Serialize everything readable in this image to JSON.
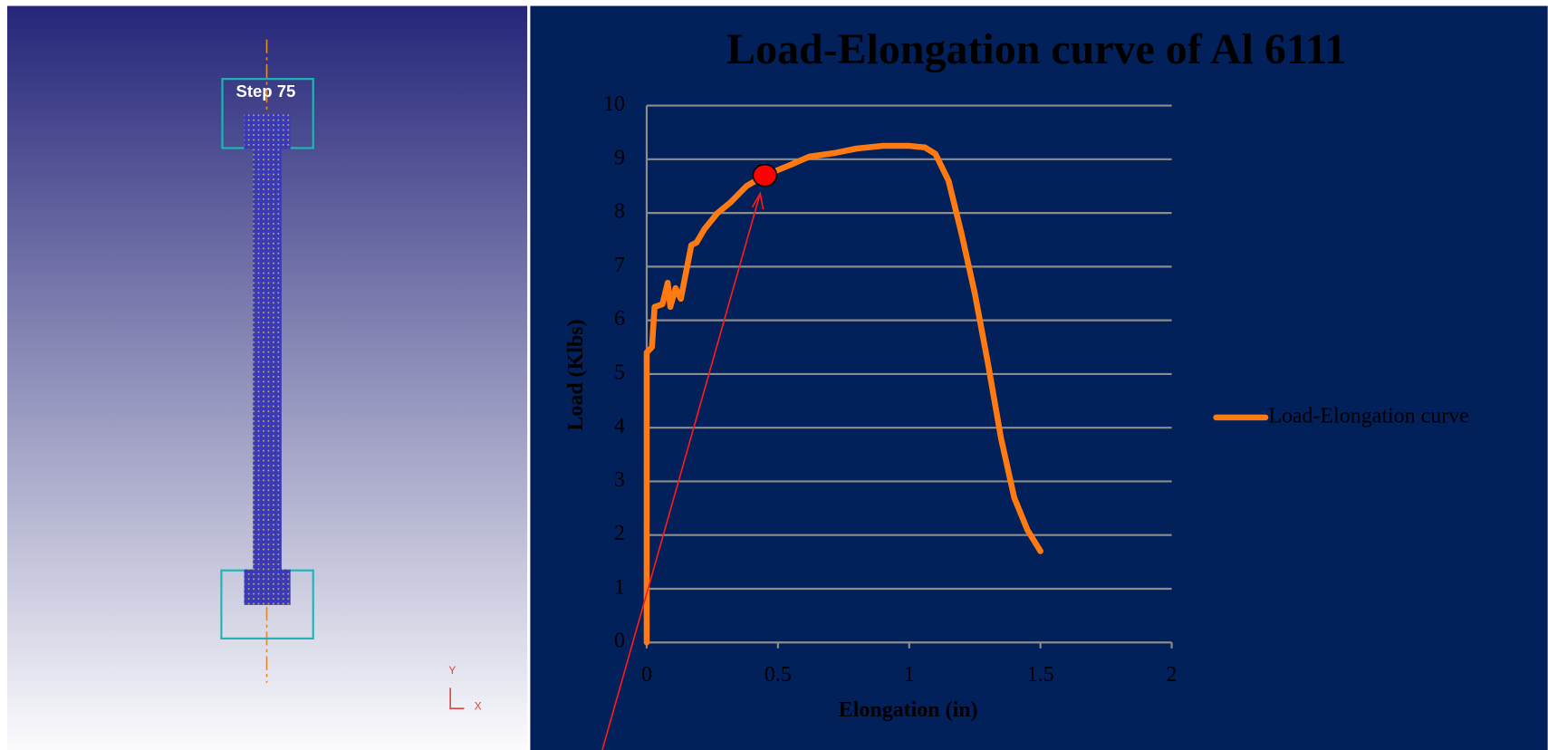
{
  "simulation": {
    "step_label": "Step  75",
    "axis_y": "Y",
    "axis_x": "X"
  },
  "chart_data": {
    "type": "line",
    "title": "Load-Elongation curve of Al 6111",
    "x_label": "Elongation (in)",
    "y_label": "Load (Klbs)",
    "x": [
      0,
      0,
      0.02,
      0.03,
      0.06,
      0.08,
      0.09,
      0.11,
      0.13,
      0.15,
      0.17,
      0.19,
      0.22,
      0.27,
      0.32,
      0.38,
      0.45,
      0.55,
      0.62,
      0.72,
      0.8,
      0.9,
      1.0,
      1.06,
      1.1,
      1.15,
      1.2,
      1.25,
      1.3,
      1.35,
      1.4,
      1.45,
      1.5
    ],
    "series": [
      {
        "name": "Load-Elongation curve",
        "color": "#ff7a10",
        "values": [
          0,
          5.4,
          5.5,
          6.25,
          6.3,
          6.7,
          6.25,
          6.6,
          6.4,
          6.9,
          7.4,
          7.45,
          7.7,
          8.0,
          8.2,
          8.5,
          8.7,
          8.9,
          9.05,
          9.12,
          9.2,
          9.25,
          9.25,
          9.22,
          9.1,
          8.6,
          7.6,
          6.5,
          5.2,
          3.8,
          2.7,
          2.1,
          1.7
        ]
      }
    ],
    "highlight": {
      "x": 0.45,
      "y": 8.7,
      "color": "#ff0000"
    },
    "xlim": [
      0,
      2
    ],
    "xticks": [
      0,
      0.5,
      1,
      1.5,
      2
    ],
    "ylim": [
      0,
      10
    ],
    "yticks": [
      0,
      1,
      2,
      3,
      4,
      5,
      6,
      7,
      8,
      9,
      10
    ],
    "grid": true,
    "legend": "right"
  }
}
